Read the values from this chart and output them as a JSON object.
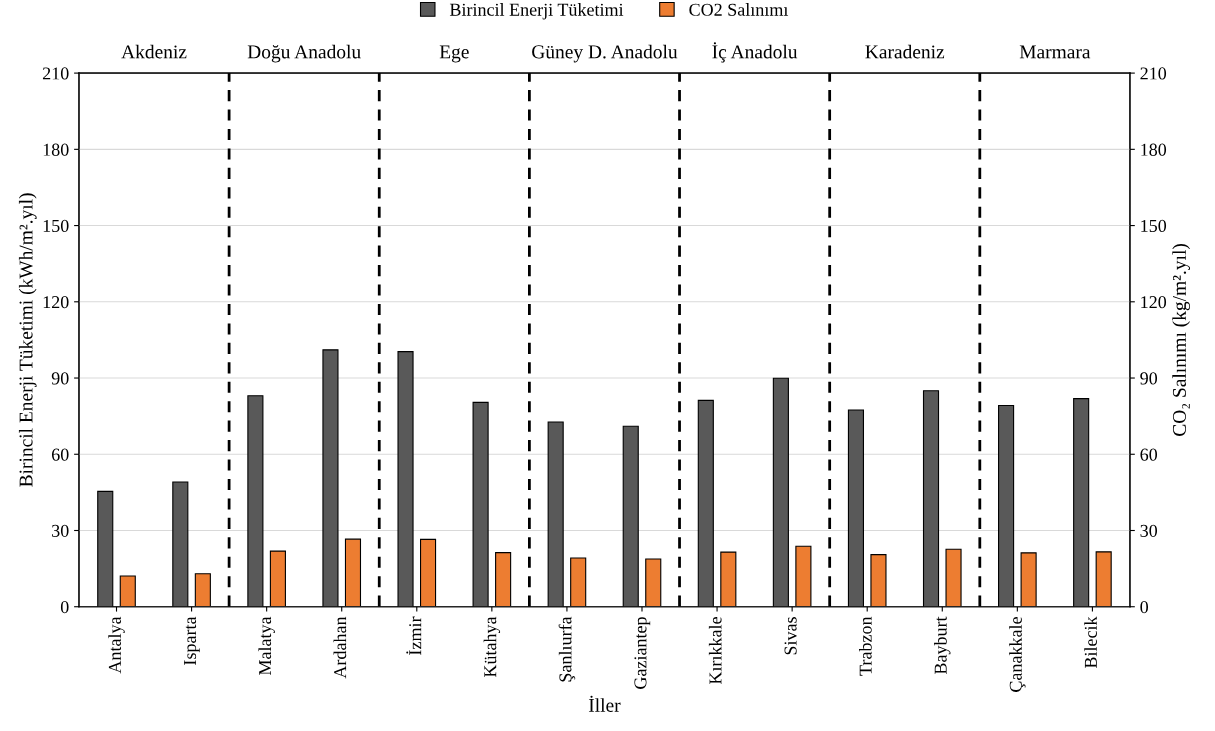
{
  "chart_data": {
    "type": "bar",
    "xlabel": "İller",
    "ylabel": "Birincil Enerji Tüketimi (kWh/m².yıl)",
    "y2label": "CO₂ Salınımı (kg/m².yıl)",
    "categories": [
      "Antalya",
      "Isparta",
      "Malatya",
      "Ardahan",
      "İzmir",
      "Kütahya",
      "Şanlıurfa",
      "Gaziantep",
      "Kırıkkale",
      "Sivas",
      "Trabzon",
      "Bayburt",
      "Çanakkale",
      "Bilecik"
    ],
    "series": [
      {
        "name": "Birincil Enerji Tüketimi",
        "color": "#595959",
        "values": [
          45.4,
          49.1,
          83.0,
          101.1,
          100.4,
          80.4,
          72.7,
          71.0,
          81.2,
          89.9,
          77.4,
          85.0,
          79.2,
          81.9
        ]
      },
      {
        "name": "CO2 Salınımı",
        "color": "#ed7d31",
        "axis": "y2",
        "values": [
          12.1,
          13.0,
          21.9,
          26.6,
          26.5,
          21.3,
          19.2,
          18.8,
          21.5,
          23.8,
          20.5,
          22.6,
          21.2,
          21.6
        ]
      }
    ],
    "ylim": [
      0,
      210
    ],
    "yticks": [
      0,
      30,
      60,
      90,
      120,
      150,
      180,
      210
    ],
    "y2lim": [
      0,
      210
    ],
    "y2ticks": [
      0,
      30,
      60,
      90,
      120,
      150,
      180,
      210
    ],
    "annotations": [
      "Akdeniz",
      "Doğu Anadolu",
      "Ege",
      "Güney D. Anadolu",
      "İç Anadolu",
      "Karadeniz",
      "Marmara"
    ],
    "grid": "y",
    "legend": "top"
  }
}
